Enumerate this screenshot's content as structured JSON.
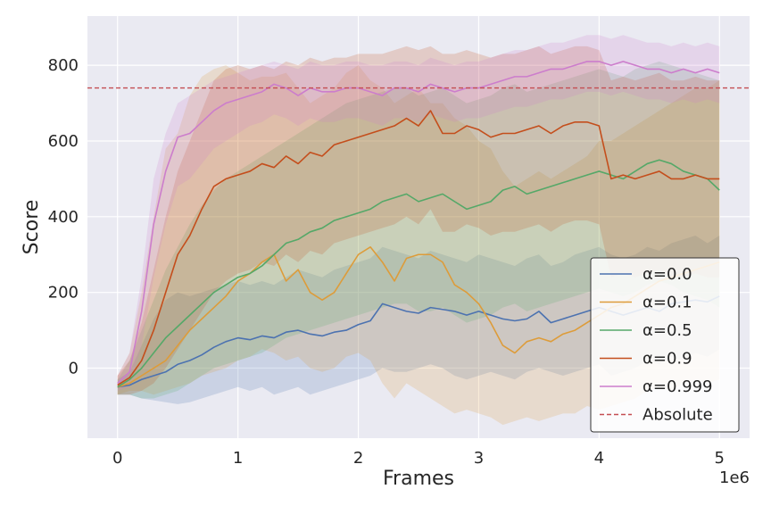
{
  "chart_data": {
    "type": "line",
    "title": "",
    "xlabel": "Frames",
    "ylabel": "Score",
    "x_offset_label": "1e6",
    "xlim": [
      -0.25,
      5.25
    ],
    "ylim": [
      -185,
      930
    ],
    "xticks": [
      0,
      1,
      2,
      3,
      4,
      5
    ],
    "xtick_labels": [
      "0",
      "1",
      "2",
      "3",
      "4",
      "5"
    ],
    "yticks": [
      0,
      200,
      400,
      600,
      800
    ],
    "ytick_labels": [
      "0",
      "200",
      "400",
      "600",
      "800"
    ],
    "grid": true,
    "legend_position": "lower-right",
    "x": [
      0.0,
      0.1,
      0.2,
      0.3,
      0.4,
      0.5,
      0.6,
      0.7,
      0.8,
      0.9,
      1.0,
      1.1,
      1.2,
      1.3,
      1.4,
      1.5,
      1.6,
      1.7,
      1.8,
      1.9,
      2.0,
      2.1,
      2.2,
      2.3,
      2.4,
      2.5,
      2.6,
      2.7,
      2.8,
      2.9,
      3.0,
      3.1,
      3.2,
      3.3,
      3.4,
      3.5,
      3.6,
      3.7,
      3.8,
      3.9,
      4.0,
      4.1,
      4.2,
      4.3,
      4.4,
      4.5,
      4.6,
      4.7,
      4.8,
      4.9,
      5.0
    ],
    "series": [
      {
        "name": "α=0.0",
        "color": "#4c72b0",
        "values": [
          -50,
          -45,
          -30,
          -20,
          -10,
          10,
          20,
          35,
          55,
          70,
          80,
          75,
          85,
          80,
          95,
          100,
          90,
          85,
          95,
          100,
          115,
          125,
          170,
          160,
          150,
          145,
          160,
          155,
          150,
          140,
          150,
          140,
          130,
          125,
          130,
          150,
          120,
          130,
          140,
          150,
          160,
          150,
          140,
          150,
          160,
          150,
          170,
          175,
          180,
          175,
          190
        ],
        "lower": [
          -70,
          -70,
          -80,
          -85,
          -90,
          -95,
          -90,
          -80,
          -70,
          -60,
          -50,
          -60,
          -50,
          -70,
          -60,
          -50,
          -70,
          -60,
          -50,
          -40,
          -30,
          -20,
          0,
          -10,
          -10,
          0,
          10,
          0,
          -20,
          -30,
          -20,
          -10,
          -20,
          -30,
          -10,
          0,
          -10,
          -20,
          -10,
          0,
          10,
          -20,
          -10,
          0,
          20,
          10,
          30,
          20,
          40,
          30,
          50
        ],
        "upper": [
          -30,
          -10,
          60,
          130,
          180,
          200,
          190,
          200,
          210,
          220,
          230,
          220,
          230,
          220,
          240,
          260,
          250,
          240,
          260,
          270,
          280,
          290,
          320,
          310,
          300,
          290,
          310,
          300,
          290,
          280,
          300,
          290,
          280,
          270,
          290,
          300,
          270,
          280,
          300,
          310,
          320,
          300,
          290,
          300,
          320,
          310,
          330,
          340,
          350,
          330,
          350
        ]
      },
      {
        "name": "α=0.1",
        "color": "#dd9c3a",
        "values": [
          -50,
          -40,
          -20,
          0,
          20,
          60,
          100,
          130,
          160,
          190,
          230,
          250,
          280,
          300,
          230,
          260,
          200,
          180,
          200,
          250,
          300,
          320,
          280,
          230,
          290,
          300,
          300,
          280,
          220,
          200,
          170,
          120,
          60,
          40,
          70,
          80,
          70,
          90,
          100,
          120,
          140,
          160,
          170,
          190,
          210,
          230,
          240,
          250,
          260,
          270,
          280
        ],
        "lower": [
          -70,
          -60,
          -60,
          -70,
          -60,
          -50,
          -40,
          -20,
          -10,
          0,
          20,
          30,
          50,
          40,
          20,
          30,
          0,
          -10,
          0,
          30,
          40,
          20,
          -40,
          -80,
          -40,
          -60,
          -80,
          -100,
          -120,
          -110,
          -120,
          -130,
          -150,
          -140,
          -130,
          -140,
          -130,
          -120,
          -120,
          -100,
          -110,
          -100,
          -90,
          -80,
          -60,
          -50,
          -60,
          -40,
          -30,
          -40,
          -30
        ],
        "upper": [
          -20,
          40,
          200,
          400,
          580,
          620,
          720,
          770,
          790,
          800,
          780,
          760,
          770,
          770,
          780,
          740,
          700,
          720,
          740,
          780,
          800,
          760,
          740,
          700,
          720,
          740,
          700,
          700,
          660,
          640,
          600,
          580,
          520,
          480,
          500,
          520,
          500,
          520,
          540,
          560,
          600,
          600,
          620,
          640,
          660,
          680,
          700,
          720,
          740,
          740,
          760
        ]
      },
      {
        "name": "α=0.5",
        "color": "#55a868",
        "values": [
          -50,
          -30,
          0,
          40,
          80,
          110,
          140,
          170,
          200,
          220,
          240,
          250,
          270,
          300,
          330,
          340,
          360,
          370,
          390,
          400,
          410,
          420,
          440,
          450,
          460,
          440,
          450,
          460,
          440,
          420,
          430,
          440,
          470,
          480,
          460,
          470,
          480,
          490,
          500,
          510,
          520,
          510,
          500,
          520,
          540,
          550,
          540,
          520,
          510,
          500,
          470
        ],
        "lower": [
          -70,
          -70,
          -80,
          -80,
          -70,
          -60,
          -40,
          -20,
          0,
          10,
          20,
          30,
          40,
          60,
          80,
          90,
          100,
          110,
          120,
          130,
          140,
          150,
          160,
          170,
          170,
          150,
          150,
          160,
          140,
          120,
          130,
          140,
          160,
          170,
          150,
          160,
          170,
          180,
          190,
          200,
          210,
          200,
          190,
          200,
          220,
          230,
          220,
          200,
          190,
          180,
          160
        ],
        "upper": [
          -30,
          20,
          100,
          180,
          260,
          320,
          380,
          430,
          470,
          500,
          520,
          540,
          560,
          580,
          600,
          620,
          640,
          660,
          680,
          700,
          710,
          720,
          730,
          740,
          740,
          720,
          730,
          740,
          720,
          700,
          710,
          720,
          740,
          750,
          730,
          740,
          750,
          760,
          770,
          780,
          790,
          780,
          770,
          790,
          800,
          810,
          800,
          790,
          780,
          770,
          760
        ]
      },
      {
        "name": "α=0.9",
        "color": "#c44e1c",
        "values": [
          -45,
          -25,
          20,
          100,
          200,
          300,
          350,
          420,
          480,
          500,
          510,
          520,
          540,
          530,
          560,
          540,
          570,
          560,
          590,
          600,
          610,
          620,
          630,
          640,
          660,
          640,
          680,
          620,
          620,
          640,
          630,
          610,
          620,
          620,
          630,
          640,
          620,
          640,
          650,
          650,
          640,
          500,
          510,
          500,
          510,
          520,
          500,
          500,
          510,
          500,
          500
        ],
        "lower": [
          -70,
          -70,
          -60,
          -40,
          0,
          50,
          100,
          150,
          200,
          230,
          250,
          260,
          280,
          270,
          300,
          280,
          310,
          300,
          330,
          340,
          350,
          360,
          370,
          380,
          400,
          380,
          420,
          360,
          360,
          380,
          370,
          350,
          360,
          360,
          370,
          380,
          360,
          380,
          390,
          390,
          380,
          240,
          250,
          240,
          250,
          260,
          240,
          240,
          250,
          240,
          240
        ],
        "upper": [
          -20,
          20,
          120,
          260,
          400,
          520,
          600,
          680,
          760,
          790,
          800,
          790,
          800,
          790,
          810,
          800,
          820,
          810,
          820,
          820,
          830,
          830,
          830,
          840,
          850,
          840,
          850,
          830,
          830,
          840,
          830,
          820,
          830,
          830,
          840,
          850,
          830,
          840,
          850,
          850,
          840,
          760,
          770,
          760,
          770,
          780,
          760,
          760,
          770,
          760,
          760
        ]
      },
      {
        "name": "α=0.999",
        "color": "#cc7dcc",
        "values": [
          -40,
          -10,
          150,
          380,
          520,
          610,
          620,
          650,
          680,
          700,
          710,
          720,
          730,
          750,
          740,
          720,
          740,
          730,
          730,
          740,
          740,
          730,
          720,
          740,
          740,
          730,
          750,
          740,
          730,
          740,
          740,
          750,
          760,
          770,
          770,
          780,
          790,
          790,
          800,
          810,
          810,
          800,
          810,
          800,
          790,
          790,
          780,
          790,
          780,
          790,
          780
        ],
        "lower": [
          -60,
          -50,
          60,
          240,
          380,
          480,
          500,
          540,
          580,
          600,
          620,
          640,
          650,
          670,
          660,
          640,
          660,
          650,
          650,
          660,
          660,
          650,
          640,
          660,
          660,
          650,
          670,
          660,
          650,
          660,
          660,
          670,
          680,
          690,
          690,
          700,
          710,
          710,
          720,
          730,
          730,
          720,
          730,
          720,
          710,
          710,
          700,
          710,
          700,
          710,
          700
        ],
        "upper": [
          -20,
          40,
          240,
          500,
          620,
          700,
          720,
          740,
          760,
          770,
          780,
          790,
          800,
          810,
          800,
          790,
          810,
          800,
          800,
          810,
          810,
          800,
          800,
          810,
          810,
          800,
          820,
          810,
          800,
          810,
          810,
          820,
          830,
          840,
          840,
          850,
          860,
          860,
          870,
          880,
          880,
          870,
          880,
          870,
          860,
          860,
          850,
          860,
          850,
          860,
          850
        ]
      }
    ],
    "reference_lines": [
      {
        "name": "Absolute",
        "y": 740,
        "color": "#c44e52",
        "style": "dashed"
      }
    ]
  }
}
